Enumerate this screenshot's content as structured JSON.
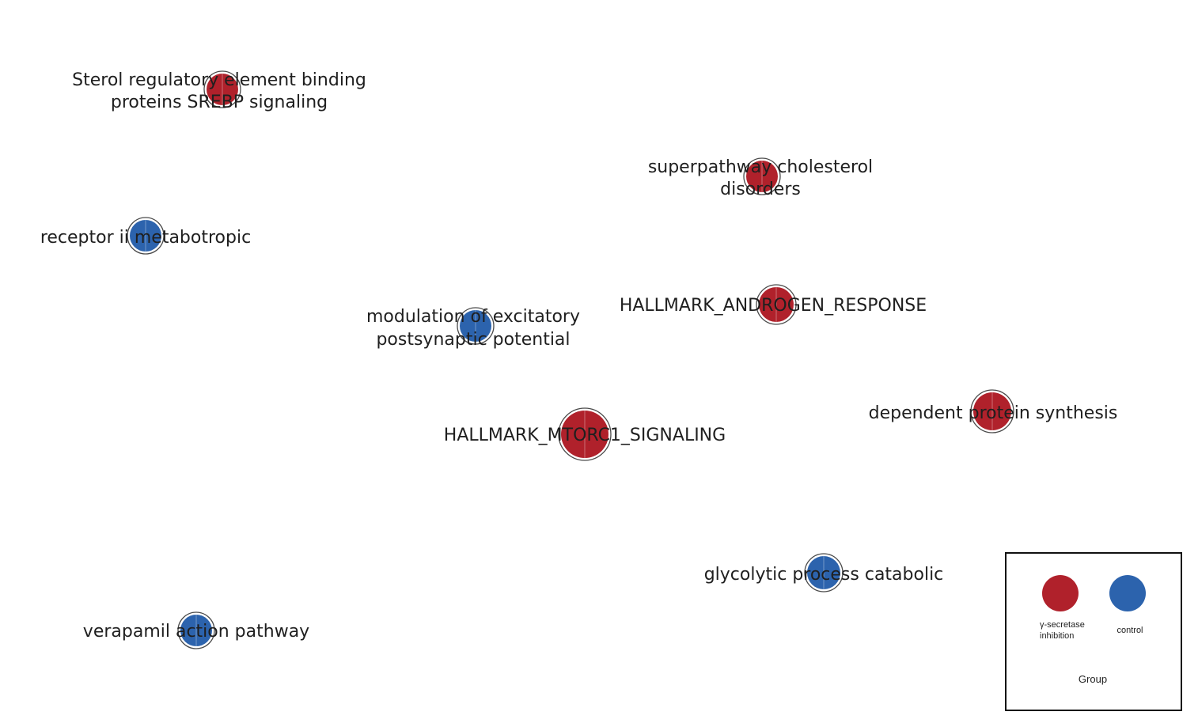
{
  "colors": {
    "inhibition": "#b0212b",
    "control": "#2c63ad"
  },
  "nodes": [
    {
      "id": "srebp",
      "label_lines": [
        "Sterol regulatory element binding",
        "proteins SREBP signaling"
      ],
      "group": "inhibition"
    },
    {
      "id": "cholesterol",
      "label_lines": [
        "superpathway cholesterol",
        "disorders"
      ],
      "group": "inhibition"
    },
    {
      "id": "receptor",
      "label_lines": [
        "receptor ii metabotropic"
      ],
      "group": "control"
    },
    {
      "id": "modulation",
      "label_lines": [
        "modulation of excitatory",
        "postsynaptic potential"
      ],
      "group": "control"
    },
    {
      "id": "androgen",
      "label_lines": [
        "HALLMARK_ANDROGEN_RESPONSE"
      ],
      "group": "inhibition"
    },
    {
      "id": "protein",
      "label_lines": [
        "dependent protein synthesis"
      ],
      "group": "inhibition"
    },
    {
      "id": "mtorc1",
      "label_lines": [
        "HALLMARK_MTORC1_SIGNALING"
      ],
      "group": "inhibition"
    },
    {
      "id": "glycolytic",
      "label_lines": [
        "glycolytic process catabolic"
      ],
      "group": "control"
    },
    {
      "id": "verapamil",
      "label_lines": [
        "verapamil action pathway"
      ],
      "group": "control"
    }
  ],
  "legend": {
    "title": "Group",
    "items": [
      {
        "group": "inhibition",
        "label_lines": [
          "γ-secretase",
          "inhibition"
        ]
      },
      {
        "group": "control",
        "label_lines": [
          "control"
        ]
      }
    ]
  }
}
